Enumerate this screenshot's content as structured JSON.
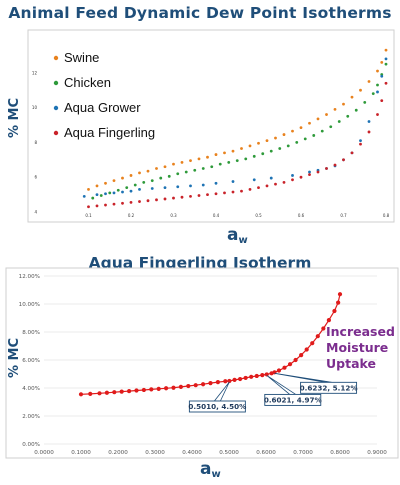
{
  "titles": {
    "top": "Animal Feed Dynamic Dew Point Isotherms",
    "bottom": "Aqua Fingerling Isotherm"
  },
  "colors": {
    "title": "#1f4e79",
    "swine": "#e8821e",
    "chicken": "#2e9a3a",
    "aqua_grower": "#1e73b4",
    "aqua_fingerling": "#c9232a",
    "callout": "#7b2d8e"
  },
  "chart_data": [
    {
      "type": "scatter",
      "title": "Animal Feed Dynamic Dew Point Isotherms",
      "xlabel": "a",
      "xlabel_sub": "w",
      "ylabel": "% MC",
      "xlim": [
        0,
        0.8
      ],
      "ylim": [
        4,
        14
      ],
      "x_ticks": [
        "0.1",
        "0.2",
        "0.3",
        "0.4",
        "0.5",
        "0.6",
        "0.7",
        "0.8"
      ],
      "y_ticks": [
        "4",
        "6",
        "8",
        "10",
        "12"
      ],
      "legend_position": "top-left",
      "series": [
        {
          "name": "Swine",
          "color": "#e8821e",
          "points": [
            [
              0.1,
              5.3
            ],
            [
              0.12,
              5.5
            ],
            [
              0.14,
              5.65
            ],
            [
              0.16,
              5.8
            ],
            [
              0.18,
              5.95
            ],
            [
              0.2,
              6.1
            ],
            [
              0.22,
              6.25
            ],
            [
              0.24,
              6.35
            ],
            [
              0.26,
              6.5
            ],
            [
              0.28,
              6.6
            ],
            [
              0.3,
              6.75
            ],
            [
              0.32,
              6.85
            ],
            [
              0.34,
              6.95
            ],
            [
              0.36,
              7.05
            ],
            [
              0.38,
              7.15
            ],
            [
              0.4,
              7.3
            ],
            [
              0.42,
              7.4
            ],
            [
              0.44,
              7.5
            ],
            [
              0.46,
              7.65
            ],
            [
              0.48,
              7.8
            ],
            [
              0.5,
              7.95
            ],
            [
              0.52,
              8.1
            ],
            [
              0.54,
              8.25
            ],
            [
              0.56,
              8.45
            ],
            [
              0.58,
              8.65
            ],
            [
              0.6,
              8.85
            ],
            [
              0.62,
              9.1
            ],
            [
              0.64,
              9.35
            ],
            [
              0.66,
              9.6
            ],
            [
              0.68,
              9.9
            ],
            [
              0.7,
              10.2
            ],
            [
              0.72,
              10.6
            ],
            [
              0.74,
              11.0
            ],
            [
              0.76,
              11.5
            ],
            [
              0.78,
              12.1
            ],
            [
              0.79,
              12.6
            ],
            [
              0.8,
              13.3
            ]
          ]
        },
        {
          "name": "Chicken",
          "color": "#2e9a3a",
          "points": [
            [
              0.11,
              4.8
            ],
            [
              0.13,
              4.95
            ],
            [
              0.15,
              5.1
            ],
            [
              0.17,
              5.25
            ],
            [
              0.19,
              5.4
            ],
            [
              0.21,
              5.55
            ],
            [
              0.23,
              5.7
            ],
            [
              0.25,
              5.8
            ],
            [
              0.27,
              5.95
            ],
            [
              0.29,
              6.05
            ],
            [
              0.31,
              6.2
            ],
            [
              0.33,
              6.3
            ],
            [
              0.35,
              6.4
            ],
            [
              0.37,
              6.5
            ],
            [
              0.39,
              6.6
            ],
            [
              0.41,
              6.75
            ],
            [
              0.43,
              6.85
            ],
            [
              0.45,
              6.95
            ],
            [
              0.47,
              7.05
            ],
            [
              0.49,
              7.2
            ],
            [
              0.51,
              7.35
            ],
            [
              0.53,
              7.5
            ],
            [
              0.55,
              7.65
            ],
            [
              0.57,
              7.8
            ],
            [
              0.59,
              8.0
            ],
            [
              0.61,
              8.2
            ],
            [
              0.63,
              8.4
            ],
            [
              0.65,
              8.65
            ],
            [
              0.67,
              8.9
            ],
            [
              0.69,
              9.2
            ],
            [
              0.71,
              9.5
            ],
            [
              0.73,
              9.85
            ],
            [
              0.75,
              10.3
            ],
            [
              0.77,
              10.8
            ],
            [
              0.78,
              11.3
            ],
            [
              0.79,
              11.9
            ],
            [
              0.8,
              12.5
            ]
          ]
        },
        {
          "name": "Aqua Grower",
          "color": "#1e73b4",
          "points": [
            [
              0.09,
              4.9
            ],
            [
              0.12,
              5.0
            ],
            [
              0.14,
              5.05
            ],
            [
              0.16,
              5.1
            ],
            [
              0.18,
              5.15
            ],
            [
              0.2,
              5.2
            ],
            [
              0.22,
              5.3
            ],
            [
              0.25,
              5.35
            ],
            [
              0.28,
              5.4
            ],
            [
              0.31,
              5.45
            ],
            [
              0.34,
              5.5
            ],
            [
              0.37,
              5.55
            ],
            [
              0.4,
              5.65
            ],
            [
              0.44,
              5.75
            ],
            [
              0.49,
              5.85
            ],
            [
              0.53,
              5.95
            ],
            [
              0.58,
              6.1
            ],
            [
              0.62,
              6.3
            ],
            [
              0.64,
              6.4
            ],
            [
              0.66,
              6.5
            ],
            [
              0.68,
              6.65
            ],
            [
              0.7,
              7.0
            ],
            [
              0.72,
              7.4
            ],
            [
              0.74,
              8.1
            ],
            [
              0.76,
              9.2
            ],
            [
              0.78,
              10.9
            ],
            [
              0.79,
              11.8
            ],
            [
              0.8,
              12.8
            ]
          ]
        },
        {
          "name": "Aqua Fingerling",
          "color": "#c9232a",
          "points": [
            [
              0.1,
              4.3
            ],
            [
              0.12,
              4.35
            ],
            [
              0.14,
              4.4
            ],
            [
              0.16,
              4.45
            ],
            [
              0.18,
              4.5
            ],
            [
              0.2,
              4.55
            ],
            [
              0.22,
              4.6
            ],
            [
              0.24,
              4.65
            ],
            [
              0.26,
              4.7
            ],
            [
              0.28,
              4.75
            ],
            [
              0.3,
              4.8
            ],
            [
              0.32,
              4.85
            ],
            [
              0.34,
              4.9
            ],
            [
              0.36,
              4.95
            ],
            [
              0.38,
              5.0
            ],
            [
              0.4,
              5.05
            ],
            [
              0.42,
              5.1
            ],
            [
              0.44,
              5.15
            ],
            [
              0.46,
              5.2
            ],
            [
              0.48,
              5.3
            ],
            [
              0.5,
              5.4
            ],
            [
              0.52,
              5.5
            ],
            [
              0.54,
              5.6
            ],
            [
              0.56,
              5.7
            ],
            [
              0.58,
              5.85
            ],
            [
              0.6,
              6.0
            ],
            [
              0.62,
              6.15
            ],
            [
              0.64,
              6.3
            ],
            [
              0.66,
              6.5
            ],
            [
              0.68,
              6.7
            ],
            [
              0.7,
              7.0
            ],
            [
              0.72,
              7.4
            ],
            [
              0.74,
              7.9
            ],
            [
              0.76,
              8.6
            ],
            [
              0.78,
              9.6
            ],
            [
              0.79,
              10.4
            ],
            [
              0.8,
              11.4
            ]
          ]
        }
      ]
    },
    {
      "type": "scatter",
      "title": "Aqua Fingerling Isotherm",
      "xlabel": "a",
      "xlabel_sub": "w",
      "ylabel": "% MC",
      "xlim": [
        0,
        0.9
      ],
      "ylim": [
        0,
        12
      ],
      "x_ticks": [
        "0.0000",
        "0.1000",
        "0.2000",
        "0.3000",
        "0.4000",
        "0.5000",
        "0.6000",
        "0.7000",
        "0.8000",
        "0.9000"
      ],
      "y_ticks": [
        "0.00%",
        "2.00%",
        "4.00%",
        "6.00%",
        "8.00%",
        "10.00%",
        "12.00%"
      ],
      "grid": true,
      "series": [
        {
          "name": "",
          "color": "#e01b1b",
          "points": [
            [
              0.1,
              3.55
            ],
            [
              0.125,
              3.58
            ],
            [
              0.15,
              3.62
            ],
            [
              0.17,
              3.66
            ],
            [
              0.19,
              3.7
            ],
            [
              0.21,
              3.74
            ],
            [
              0.23,
              3.78
            ],
            [
              0.25,
              3.82
            ],
            [
              0.27,
              3.86
            ],
            [
              0.29,
              3.9
            ],
            [
              0.31,
              3.94
            ],
            [
              0.33,
              3.98
            ],
            [
              0.35,
              4.02
            ],
            [
              0.37,
              4.08
            ],
            [
              0.39,
              4.14
            ],
            [
              0.41,
              4.2
            ],
            [
              0.43,
              4.27
            ],
            [
              0.45,
              4.35
            ],
            [
              0.47,
              4.42
            ],
            [
              0.49,
              4.48
            ],
            [
              0.501,
              4.5
            ],
            [
              0.515,
              4.58
            ],
            [
              0.53,
              4.64
            ],
            [
              0.545,
              4.72
            ],
            [
              0.56,
              4.8
            ],
            [
              0.575,
              4.86
            ],
            [
              0.59,
              4.92
            ],
            [
              0.602,
              4.97
            ],
            [
              0.615,
              5.05
            ],
            [
              0.623,
              5.12
            ],
            [
              0.635,
              5.25
            ],
            [
              0.65,
              5.45
            ],
            [
              0.665,
              5.7
            ],
            [
              0.68,
              6.0
            ],
            [
              0.695,
              6.35
            ],
            [
              0.71,
              6.75
            ],
            [
              0.725,
              7.2
            ],
            [
              0.74,
              7.7
            ],
            [
              0.755,
              8.25
            ],
            [
              0.77,
              8.85
            ],
            [
              0.785,
              9.5
            ],
            [
              0.795,
              10.1
            ],
            [
              0.8,
              10.7
            ]
          ]
        }
      ],
      "annotations": [
        {
          "text": "0.5010, 4.50%",
          "x": 0.501,
          "y": 4.5
        },
        {
          "text": "0.6021, 4.97%",
          "x": 0.6021,
          "y": 4.97
        },
        {
          "text": "0.6232, 5.12%",
          "x": 0.6232,
          "y": 5.12
        }
      ],
      "callout": [
        "Increased",
        "Moisture",
        "Uptake"
      ]
    }
  ]
}
